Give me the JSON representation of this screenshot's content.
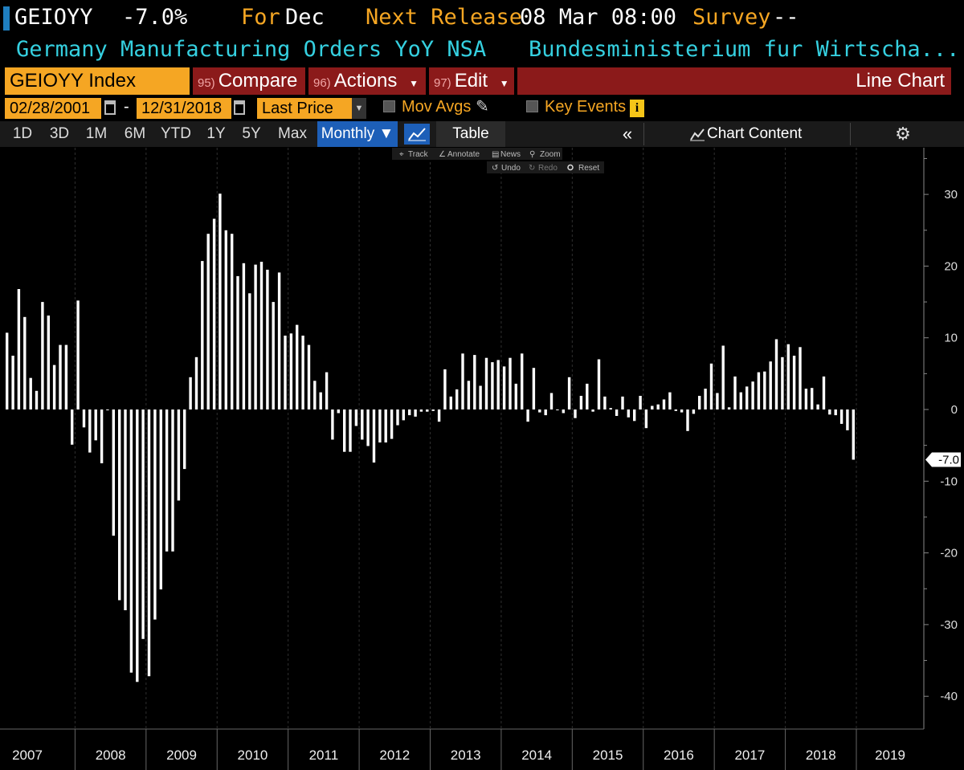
{
  "header": {
    "ticker": "GEIOYY",
    "value": "-7.0%",
    "for_label": "For",
    "for_period": "Dec",
    "next_release_label": "Next Release",
    "next_release_value": "08 Mar 08:00",
    "survey_label": "Survey",
    "survey_value": "--",
    "description": "Germany Manufacturing Orders YoY NSA",
    "source": "Bundesministerium fur Wirtscha..."
  },
  "toolbar": {
    "security": "GEIOYY Index",
    "compare_num": "95)",
    "compare_label": "Compare",
    "actions_num": "96)",
    "actions_label": "Actions",
    "edit_num": "97)",
    "edit_label": "Edit",
    "chart_type": "Line Chart",
    "start_date": "02/28/2001",
    "date_sep": "-",
    "end_date": "12/31/2018",
    "field": "Last Price",
    "mov_avgs": "Mov Avgs",
    "key_events": "Key Events",
    "key_events_icon": "i"
  },
  "periods": [
    "1D",
    "3D",
    "1M",
    "6M",
    "YTD",
    "1Y",
    "5Y",
    "Max"
  ],
  "frequency": "Monthly ▼",
  "table_label": "Table",
  "collapse_label": "«",
  "chart_content_label": "Chart Content",
  "mini_toolbar": {
    "track": "Track",
    "annotate": "Annotate",
    "news": "News",
    "zoom": "Zoom",
    "undo": "Undo",
    "redo": "Redo",
    "reset": "Reset"
  },
  "colors": {
    "background": "#000000",
    "bar": "#ffffff",
    "orange": "#f5a623",
    "cyan": "#35d0e0",
    "red_bar": "#8b1a1a",
    "blue_btn": "#1d5fb8"
  },
  "chart_data": {
    "type": "bar",
    "title": "",
    "xlabel": "",
    "ylabel": "",
    "ylim": [
      -45,
      35
    ],
    "y_ticks": [
      30,
      20,
      10,
      0,
      -10,
      -20,
      -30,
      -40
    ],
    "x_tick_labels": [
      "2007",
      "2008",
      "2009",
      "2010",
      "2011",
      "2012",
      "2013",
      "2014",
      "2015",
      "2016",
      "2017",
      "2018",
      "2019"
    ],
    "last_value_label": "-7.0",
    "x": [
      "2007-01",
      "2007-02",
      "2007-03",
      "2007-04",
      "2007-05",
      "2007-06",
      "2007-07",
      "2007-08",
      "2007-09",
      "2007-10",
      "2007-11",
      "2007-12",
      "2008-01",
      "2008-02",
      "2008-03",
      "2008-04",
      "2008-05",
      "2008-06",
      "2008-07",
      "2008-08",
      "2008-09",
      "2008-10",
      "2008-11",
      "2008-12",
      "2009-01",
      "2009-02",
      "2009-03",
      "2009-04",
      "2009-05",
      "2009-06",
      "2009-07",
      "2009-08",
      "2009-09",
      "2009-10",
      "2009-11",
      "2009-12",
      "2010-01",
      "2010-02",
      "2010-03",
      "2010-04",
      "2010-05",
      "2010-06",
      "2010-07",
      "2010-08",
      "2010-09",
      "2010-10",
      "2010-11",
      "2010-12",
      "2011-01",
      "2011-02",
      "2011-03",
      "2011-04",
      "2011-05",
      "2011-06",
      "2011-07",
      "2011-08",
      "2011-09",
      "2011-10",
      "2011-11",
      "2011-12",
      "2012-01",
      "2012-02",
      "2012-03",
      "2012-04",
      "2012-05",
      "2012-06",
      "2012-07",
      "2012-08",
      "2012-09",
      "2012-10",
      "2012-11",
      "2012-12",
      "2013-01",
      "2013-02",
      "2013-03",
      "2013-04",
      "2013-05",
      "2013-06",
      "2013-07",
      "2013-08",
      "2013-09",
      "2013-10",
      "2013-11",
      "2013-12",
      "2014-01",
      "2014-02",
      "2014-03",
      "2014-04",
      "2014-05",
      "2014-06",
      "2014-07",
      "2014-08",
      "2014-09",
      "2014-10",
      "2014-11",
      "2014-12",
      "2015-01",
      "2015-02",
      "2015-03",
      "2015-04",
      "2015-05",
      "2015-06",
      "2015-07",
      "2015-08",
      "2015-09",
      "2015-10",
      "2015-11",
      "2015-12",
      "2016-01",
      "2016-02",
      "2016-03",
      "2016-04",
      "2016-05",
      "2016-06",
      "2016-07",
      "2016-08",
      "2016-09",
      "2016-10",
      "2016-11",
      "2016-12",
      "2017-01",
      "2017-02",
      "2017-03",
      "2017-04",
      "2017-05",
      "2017-06",
      "2017-07",
      "2017-08",
      "2017-09",
      "2017-10",
      "2017-11",
      "2017-12",
      "2018-01",
      "2018-02",
      "2018-03",
      "2018-04",
      "2018-05",
      "2018-06",
      "2018-07",
      "2018-08",
      "2018-09",
      "2018-10",
      "2018-11",
      "2018-12"
    ],
    "values": [
      10.7,
      7.5,
      16.8,
      12.9,
      4.4,
      2.6,
      15.0,
      13.1,
      6.2,
      9.0,
      9.0,
      -4.9,
      15.2,
      -2.5,
      -6.0,
      -4.3,
      -7.5,
      0.0,
      -17.6,
      -26.6,
      -28.0,
      -36.7,
      -38.0,
      -32.0,
      -37.2,
      -29.3,
      -25.1,
      -19.8,
      -19.8,
      -12.7,
      -8.3,
      4.5,
      7.3,
      20.7,
      24.5,
      26.6,
      30.1,
      25.0,
      24.5,
      18.6,
      20.4,
      16.2,
      20.2,
      20.6,
      19.5,
      15.0,
      19.1,
      10.3,
      10.6,
      11.8,
      10.3,
      9.0,
      4.0,
      2.4,
      5.2,
      -4.2,
      -0.5,
      -5.9,
      -5.9,
      -2.3,
      -4.2,
      -5.1,
      -7.4,
      -4.6,
      -4.6,
      -4.1,
      -2.2,
      -1.5,
      -0.8,
      -1.0,
      -0.3,
      -0.3,
      -0.2,
      -1.7,
      5.6,
      1.8,
      2.8,
      7.8,
      4.0,
      7.6,
      3.3,
      7.2,
      6.6,
      6.9,
      6.0,
      7.2,
      3.6,
      7.8,
      -1.7,
      5.8,
      -0.4,
      -0.8,
      2.3,
      0.0,
      -0.5,
      4.5,
      -1.2,
      1.9,
      3.6,
      -0.3,
      7.0,
      1.8,
      0.2,
      -0.9,
      1.8,
      -1.1,
      -1.6,
      1.9,
      -2.6,
      0.5,
      0.7,
      1.4,
      2.4,
      -0.2,
      -0.4,
      -3.0,
      -0.6,
      1.9,
      2.9,
      6.4,
      2.3,
      8.9,
      0.3,
      4.6,
      2.4,
      3.2,
      3.9,
      5.2,
      5.3,
      6.7,
      9.8,
      7.3,
      9.1,
      7.5,
      8.7,
      2.9,
      3.0,
      0.7,
      4.6,
      -0.7,
      -0.8,
      -2.0,
      -2.9,
      -7.0
    ]
  }
}
